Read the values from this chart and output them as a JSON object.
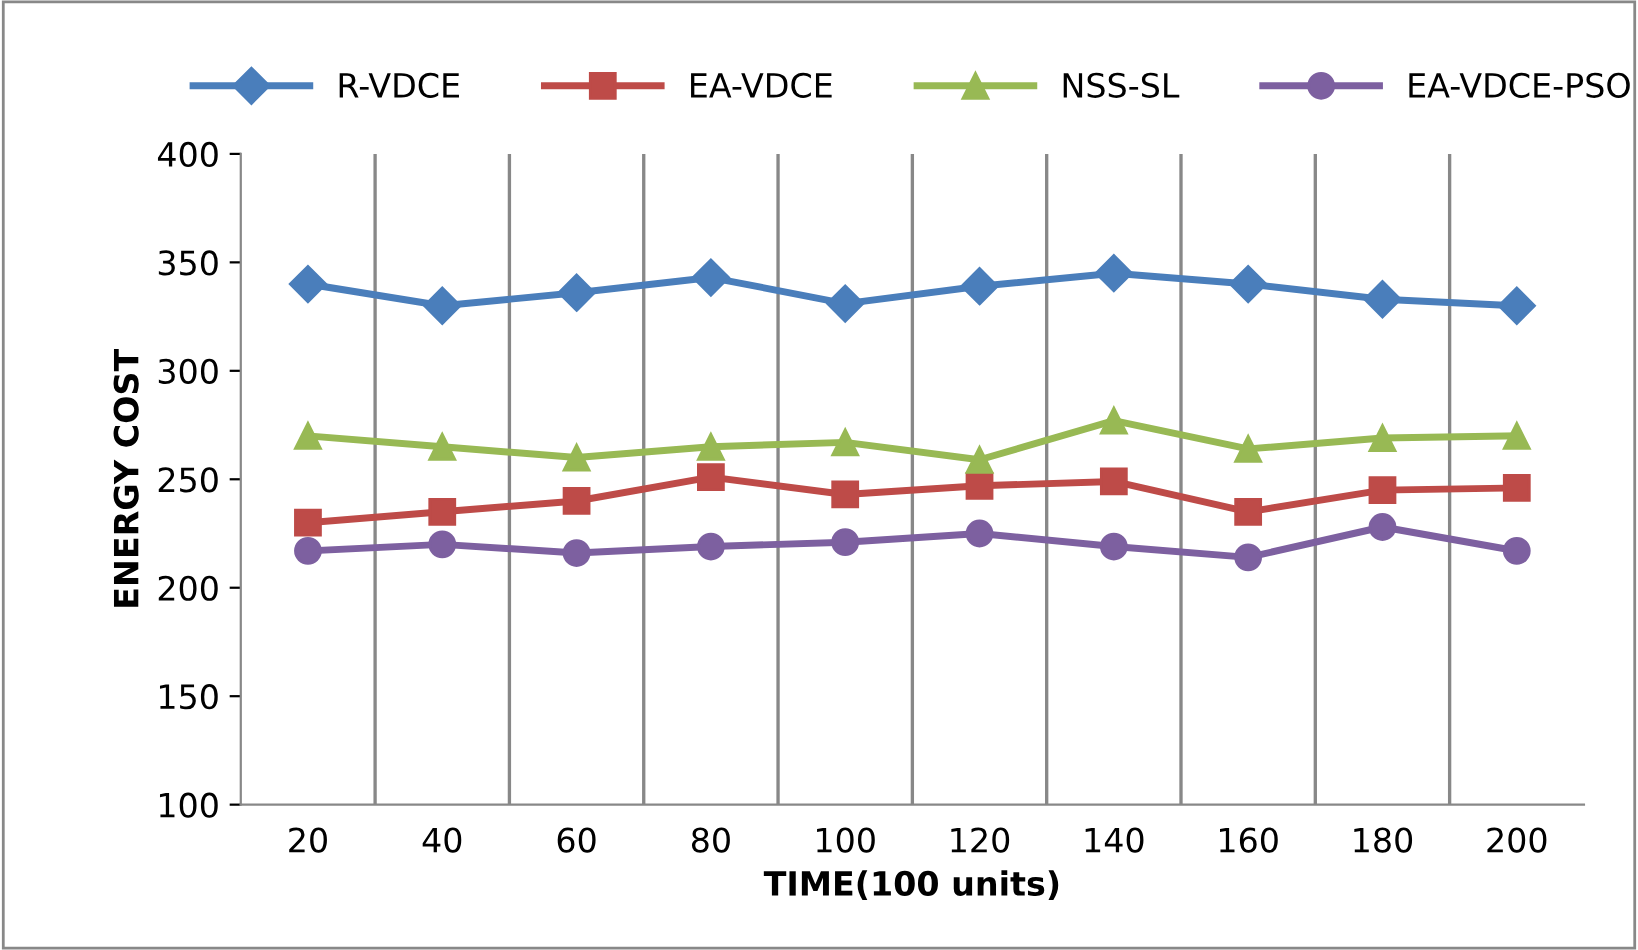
{
  "chart_data": {
    "type": "line",
    "xlabel": "TIME(100 units)",
    "ylabel": "ENERGY COST",
    "categories": [
      "20",
      "40",
      "60",
      "80",
      "100",
      "120",
      "140",
      "160",
      "180",
      "200"
    ],
    "series": [
      {
        "name": "R-VDCE",
        "color": "#4a7ebb",
        "marker": "diamond",
        "values": [
          340,
          330,
          336,
          343,
          331,
          339,
          345,
          340,
          333,
          330
        ]
      },
      {
        "name": "EA-VDCE",
        "color": "#be4b48",
        "marker": "square",
        "values": [
          230,
          235,
          240,
          251,
          243,
          247,
          249,
          235,
          245,
          246
        ]
      },
      {
        "name": "NSS-SL",
        "color": "#98b954",
        "marker": "triangle",
        "values": [
          270,
          265,
          260,
          265,
          267,
          259,
          277,
          264,
          269,
          270
        ]
      },
      {
        "name": "EA-VDCE-PSO",
        "color": "#7d60a0",
        "marker": "circle",
        "values": [
          217,
          220,
          216,
          219,
          221,
          225,
          219,
          214,
          228,
          217
        ]
      }
    ],
    "ylim": [
      100,
      400
    ],
    "yticks": [
      100,
      150,
      200,
      250,
      300,
      350,
      400
    ],
    "grid": "x",
    "legend": "top",
    "line_style": "solid"
  }
}
